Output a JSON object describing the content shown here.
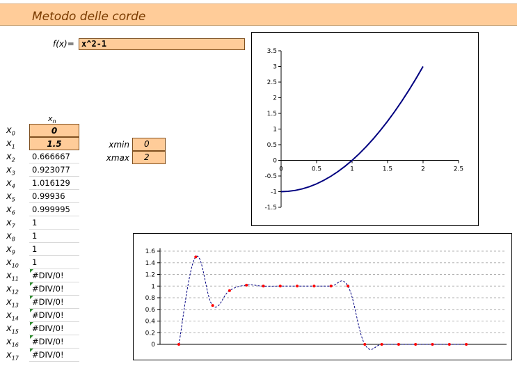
{
  "sheet": {
    "title": "Metodo delle corde",
    "function_label": "f(x)=",
    "function_value": "x^2-1",
    "column_header": "x",
    "column_header_sub": "n",
    "xmin_label": "xmin",
    "xmin_value": "0",
    "xmax_label": "xmax",
    "xmax_value": "2",
    "rows": [
      {
        "label": "x",
        "sub": "0",
        "value": "0",
        "input": true
      },
      {
        "label": "x",
        "sub": "1",
        "value": "1.5",
        "input": true
      },
      {
        "label": "x",
        "sub": "2",
        "value": "0.666667"
      },
      {
        "label": "x",
        "sub": "3",
        "value": "0.923077"
      },
      {
        "label": "x",
        "sub": "4",
        "value": "1.016129"
      },
      {
        "label": "x",
        "sub": "5",
        "value": "0.99936"
      },
      {
        "label": "x",
        "sub": "6",
        "value": "0.999995"
      },
      {
        "label": "x",
        "sub": "7",
        "value": "1"
      },
      {
        "label": "x",
        "sub": "8",
        "value": "1"
      },
      {
        "label": "x",
        "sub": "9",
        "value": "1"
      },
      {
        "label": "x",
        "sub": "10",
        "value": "1"
      },
      {
        "label": "x",
        "sub": "11",
        "value": "#DIV/0!",
        "error": true
      },
      {
        "label": "x",
        "sub": "12",
        "value": "#DIV/0!",
        "error": true
      },
      {
        "label": "x",
        "sub": "13",
        "value": "#DIV/0!",
        "error": true
      },
      {
        "label": "x",
        "sub": "14",
        "value": "#DIV/0!",
        "error": true
      },
      {
        "label": "x",
        "sub": "15",
        "value": "#DIV/0!",
        "error": true
      },
      {
        "label": "x",
        "sub": "16",
        "value": "#DIV/0!",
        "error": true
      },
      {
        "label": "x",
        "sub": "17",
        "value": "#DIV/0!",
        "error": true
      }
    ]
  },
  "chart_data": [
    {
      "type": "line",
      "function": "x^2-1",
      "x": [
        0,
        0.1,
        0.2,
        0.3,
        0.4,
        0.5,
        0.6,
        0.7,
        0.8,
        0.9,
        1.0,
        1.1,
        1.2,
        1.3,
        1.4,
        1.5,
        1.6,
        1.7,
        1.8,
        1.9,
        2.0
      ],
      "y": [
        -1,
        -0.99,
        -0.96,
        -0.91,
        -0.84,
        -0.75,
        -0.64,
        -0.51,
        -0.36,
        -0.19,
        0,
        0.21,
        0.44,
        0.69,
        0.96,
        1.25,
        1.56,
        1.89,
        2.24,
        2.61,
        3.0
      ],
      "xlim": [
        0,
        2.5
      ],
      "ylim": [
        -1.5,
        3.5
      ],
      "xticks": [
        "0",
        "0.5",
        "1",
        "1.5",
        "2",
        "2.5"
      ],
      "yticks": [
        "3.5",
        "3",
        "2.5",
        "2",
        "1.5",
        "1",
        "0.5",
        "0",
        "-0.5",
        "-1",
        "-1.5"
      ],
      "line_color": "#000080",
      "grid": false
    },
    {
      "type": "line",
      "values": [
        0,
        1.5,
        0.666667,
        0.923077,
        1.016129,
        0.99936,
        0.999995,
        1,
        1,
        1,
        1,
        0,
        0,
        0,
        0,
        0,
        0,
        0
      ],
      "ylim": [
        0,
        1.6
      ],
      "yticks": [
        "1.6",
        "1.4",
        "1.2",
        "1",
        "0.8",
        "0.6",
        "0.4",
        "0.2",
        "0"
      ],
      "line_color": "#000080",
      "line_style": "dashed",
      "marker_color": "#ff0000",
      "grid": true
    }
  ]
}
